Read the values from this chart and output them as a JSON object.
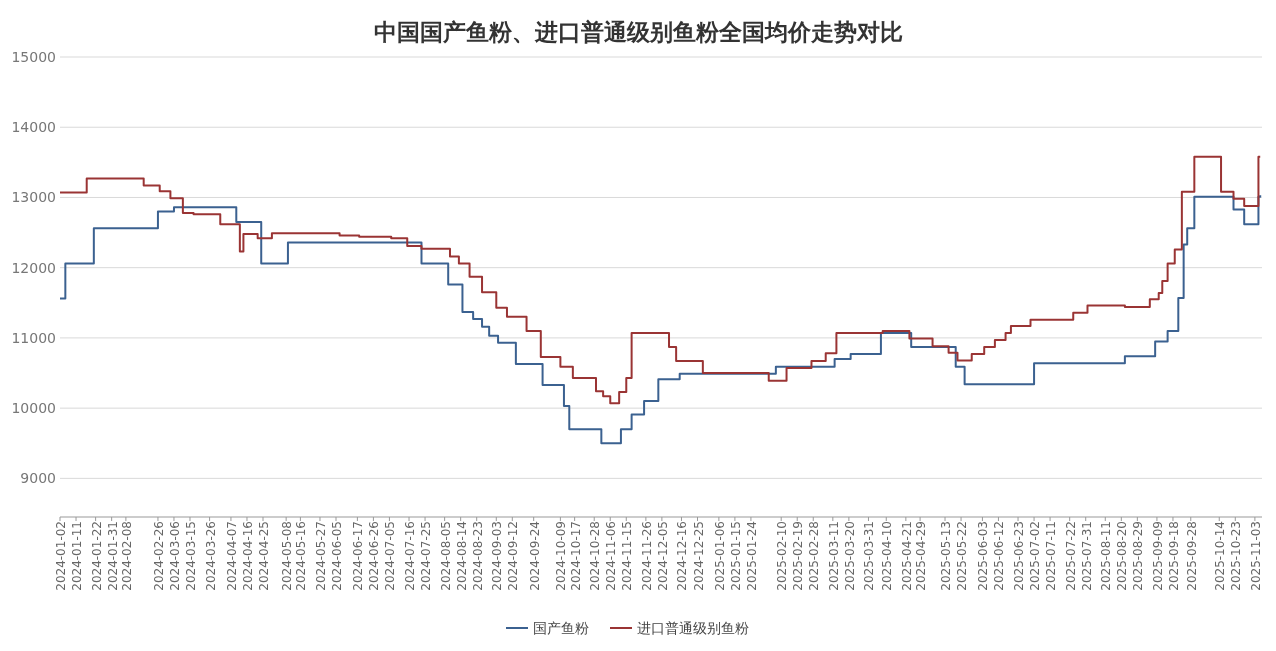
{
  "chart_data": {
    "type": "step",
    "title": "中国国产鱼粉、进口普通级别鱼粉全国均价走势对比",
    "xlim": [
      "2024-01-02",
      "2025-11-07"
    ],
    "xticks": [
      "2024-01-02",
      "2024-01-11",
      "2024-01-22",
      "2024-01-31",
      "2024-02-08",
      "2024-02-26",
      "2024-03-06",
      "2024-03-15",
      "2024-03-26",
      "2024-04-07",
      "2024-04-16",
      "2024-04-25",
      "2024-05-08",
      "2024-05-16",
      "2024-05-27",
      "2024-06-05",
      "2024-06-17",
      "2024-06-26",
      "2024-07-05",
      "2024-07-16",
      "2024-07-25",
      "2024-08-05",
      "2024-08-14",
      "2024-08-23",
      "2024-09-03",
      "2024-09-12",
      "2024-09-24",
      "2024-10-09",
      "2024-10-17",
      "2024-10-28",
      "2024-11-06",
      "2024-11-15",
      "2024-11-26",
      "2024-12-05",
      "2024-12-16",
      "2024-12-25",
      "2025-01-06",
      "2025-01-15",
      "2025-01-24",
      "2025-02-10",
      "2025-02-19",
      "2025-02-28",
      "2025-03-11",
      "2025-03-20",
      "2025-03-31",
      "2025-04-10",
      "2025-04-21",
      "2025-04-29",
      "2025-05-13",
      "2025-05-22",
      "2025-06-03",
      "2025-06-12",
      "2025-06-23",
      "2025-07-02",
      "2025-07-11",
      "2025-07-22",
      "2025-07-31",
      "2025-08-11",
      "2025-08-20",
      "2025-08-29",
      "2025-09-09",
      "2025-09-18",
      "2025-09-28",
      "2025-10-14",
      "2025-10-23",
      "2025-11-03"
    ],
    "ylim": [
      8450,
      15000
    ],
    "yticks": [
      9000,
      10000,
      11000,
      12000,
      13000,
      14000,
      15000
    ],
    "grid": "y",
    "legend": "bottom",
    "line_style": "solid",
    "series": [
      {
        "name": "国产鱼粉",
        "color": "#3b6190",
        "x": [
          "2024-01-02",
          "2024-01-05",
          "2024-01-21",
          "2024-02-26",
          "2024-03-06",
          "2024-04-10",
          "2024-04-24",
          "2024-05-09",
          "2024-07-23",
          "2024-08-07",
          "2024-08-15",
          "2024-08-21",
          "2024-08-26",
          "2024-08-30",
          "2024-09-04",
          "2024-09-14",
          "2024-09-29",
          "2024-10-11",
          "2024-10-14",
          "2024-11-01",
          "2024-11-12",
          "2024-11-18",
          "2024-11-25",
          "2024-12-03",
          "2024-12-15",
          "2025-02-07",
          "2025-03-12",
          "2025-03-21",
          "2025-04-07",
          "2025-04-24",
          "2025-05-19",
          "2025-05-24",
          "2025-07-02",
          "2025-08-22",
          "2025-09-08",
          "2025-09-15",
          "2025-09-21",
          "2025-09-24",
          "2025-09-26",
          "2025-09-30",
          "2025-10-22",
          "2025-10-28",
          "2025-11-05",
          "2025-11-06"
        ],
        "values": [
          11560,
          12060,
          12560,
          12800,
          12860,
          12650,
          12060,
          12360,
          12060,
          11760,
          11370,
          11270,
          11160,
          11030,
          10930,
          10630,
          10330,
          10030,
          9700,
          9500,
          9700,
          9910,
          10100,
          10410,
          10490,
          10590,
          10700,
          10770,
          11070,
          10870,
          10590,
          10340,
          10640,
          10740,
          10950,
          11100,
          11570,
          12330,
          12560,
          13010,
          12830,
          12620,
          13010,
          13030
        ]
      },
      {
        "name": "进口普通级别鱼粉",
        "color": "#9a3434",
        "x": [
          "2024-01-02",
          "2024-01-17",
          "2024-02-18",
          "2024-02-27",
          "2024-03-04",
          "2024-03-11",
          "2024-03-17",
          "2024-04-01",
          "2024-04-12",
          "2024-04-14",
          "2024-04-22",
          "2024-04-30",
          "2024-06-07",
          "2024-06-18",
          "2024-07-06",
          "2024-07-15",
          "2024-07-23",
          "2024-08-08",
          "2024-08-13",
          "2024-08-19",
          "2024-08-26",
          "2024-09-03",
          "2024-09-09",
          "2024-09-20",
          "2024-09-28",
          "2024-10-09",
          "2024-10-16",
          "2024-10-29",
          "2024-11-02",
          "2024-11-06",
          "2024-11-11",
          "2024-11-15",
          "2024-11-18",
          "2024-12-09",
          "2024-12-13",
          "2024-12-28",
          "2025-02-03",
          "2025-02-13",
          "2025-02-27",
          "2025-03-07",
          "2025-03-13",
          "2025-04-08",
          "2025-04-23",
          "2025-05-06",
          "2025-05-15",
          "2025-05-20",
          "2025-05-28",
          "2025-06-04",
          "2025-06-10",
          "2025-06-16",
          "2025-06-19",
          "2025-06-30",
          "2025-07-24",
          "2025-08-01",
          "2025-08-22",
          "2025-09-05",
          "2025-09-10",
          "2025-09-12",
          "2025-09-15",
          "2025-09-19",
          "2025-09-23",
          "2025-09-30",
          "2025-10-15",
          "2025-10-22",
          "2025-10-28",
          "2025-11-05",
          "2025-11-06"
        ],
        "values": [
          13070,
          13270,
          13170,
          13090,
          12990,
          12780,
          12760,
          12620,
          12230,
          12480,
          12420,
          12490,
          12460,
          12440,
          12420,
          12310,
          12270,
          12160,
          12060,
          11870,
          11650,
          11430,
          11300,
          11100,
          10730,
          10590,
          10430,
          10240,
          10170,
          10070,
          10230,
          10430,
          11070,
          10870,
          10670,
          10500,
          10390,
          10570,
          10670,
          10780,
          11070,
          11100,
          10990,
          10880,
          10790,
          10680,
          10770,
          10870,
          10970,
          11070,
          11170,
          11260,
          11360,
          11460,
          11440,
          11550,
          11640,
          11810,
          12060,
          12260,
          13080,
          13580,
          13080,
          12980,
          12880,
          13580,
          13580
        ]
      }
    ]
  }
}
